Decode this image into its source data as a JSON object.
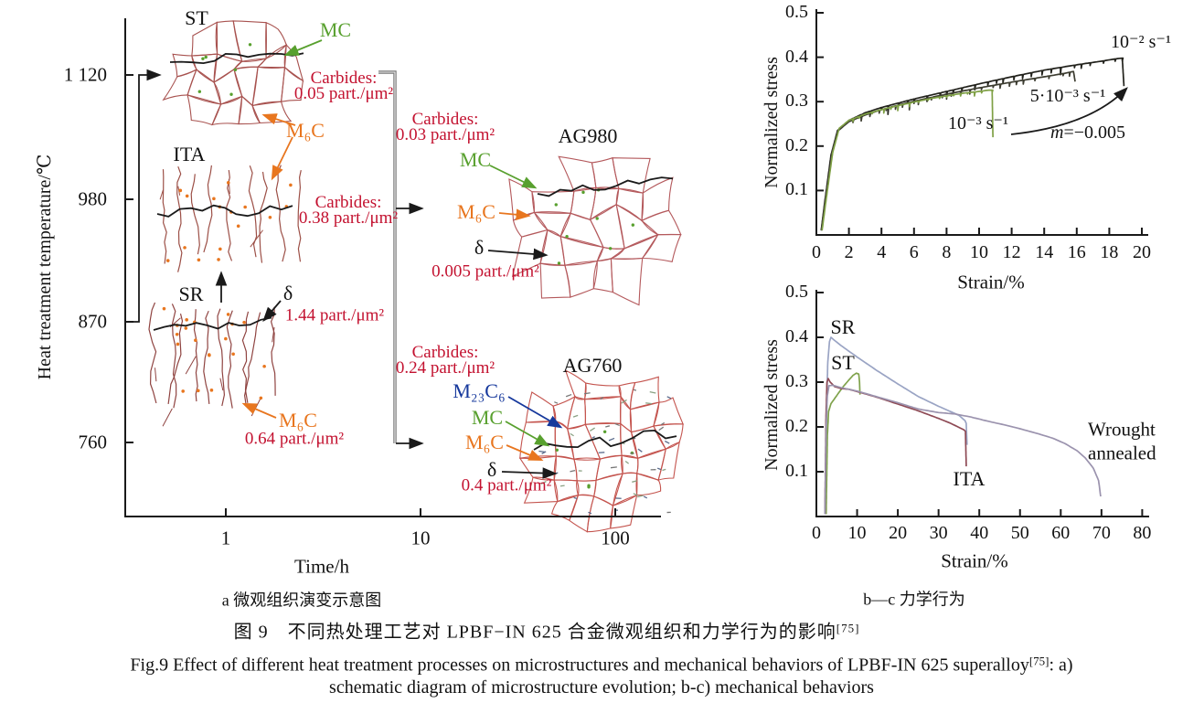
{
  "colors": {
    "annotation_red": "#c31230",
    "annotation_green": "#58a02e",
    "annotation_orange": "#e8761f",
    "annotation_blue": "#16389c",
    "bracket_gray": "#777777"
  },
  "panel_a": {
    "y_axis_label": "Heat treatment temperature/℃",
    "x_axis_label": "Time/h",
    "y_ticks": [
      "1 120",
      "980",
      "870",
      "760"
    ],
    "x_ticks": [
      "1",
      "10",
      "100"
    ],
    "caption": "a 微观组织演变示意图",
    "states": {
      "st": {
        "label": "ST",
        "mc": "MC",
        "m6c": "M₆C",
        "carbides_title": "Carbides:",
        "carbides_value": "0.05 part./μm²"
      },
      "ita": {
        "label": "ITA",
        "carbides_title": "Carbides:",
        "carbides_value": "0.38 part./μm²"
      },
      "sr": {
        "label": "SR",
        "delta": "δ",
        "delta_value": "1.44 part./μm²",
        "m6c": "M₆C",
        "m6c_value": "0.64 part./μm²"
      },
      "ag980": {
        "label": "AG980",
        "carbides_title": "Carbides:",
        "carbides_value": "0.03 part./μm²",
        "mc": "MC",
        "m6c": "M₆C",
        "delta": "δ",
        "delta_value": "0.005 part./μm²"
      },
      "ag760": {
        "label": "AG760",
        "carbides_title": "Carbides:",
        "carbides_value": "0.24 part./μm²",
        "m23c6": "M₂₃C₆",
        "mc": "MC",
        "m6c": "M₆C",
        "delta": "δ",
        "delta_value": "0.4 part./μm²"
      }
    }
  },
  "chart_b": {
    "ylabel": "Normalized stress",
    "xlabel": "Strain/%",
    "y_ticks": [
      "0.1",
      "0.2",
      "0.3",
      "0.4",
      "0.5"
    ],
    "x_ticks": [
      "0",
      "2",
      "4",
      "6",
      "8",
      "10",
      "12",
      "14",
      "16",
      "18",
      "20"
    ],
    "labels": {
      "rate_1e2": "10⁻² s⁻¹",
      "rate_5e3": "5·10⁻³ s⁻¹",
      "rate_1e3": "10⁻³ s⁻¹",
      "m_var": "m",
      "m_value": "=−0.005"
    }
  },
  "chart_c": {
    "ylabel": "Normalized stress",
    "xlabel": "Strain/%",
    "y_ticks": [
      "0.1",
      "0.2",
      "0.3",
      "0.4",
      "0.5"
    ],
    "x_ticks": [
      "0",
      "10",
      "20",
      "30",
      "40",
      "50",
      "60",
      "70",
      "80"
    ],
    "labels": {
      "sr": "SR",
      "st": "ST",
      "ita": "ITA",
      "wrought_line1": "Wrought",
      "wrought_line2": "annealed"
    },
    "caption": "b—c 力学行为"
  },
  "captions": {
    "zh_main": "图 9　不同热处理工艺对 LPBF−IN 625 合金微观组织和力学行为的影响",
    "ref_sup": "[75]",
    "en_line1": "Fig.9 Effect of different heat treatment processes on microstructures and mechanical behaviors of LPBF-IN 625 superalloy",
    "en_line1_tail": ": a)",
    "en_line2": "schematic diagram of microstructure evolution; b-c) mechanical behaviors"
  },
  "chart_data": [
    {
      "id": "b",
      "type": "line",
      "title": "",
      "xlabel": "Strain/%",
      "ylabel": "Normalized stress",
      "xlim": [
        0,
        20
      ],
      "ylim": [
        0,
        0.5
      ],
      "grid": false,
      "legend_position": "inline-annotations",
      "annotations": [
        "10⁻² s⁻¹",
        "5·10⁻³ s⁻¹",
        "10⁻³ s⁻¹",
        "m=−0.005"
      ],
      "series": [
        {
          "name": "10⁻² s⁻¹",
          "color": "#22221c",
          "serrated": true,
          "points": [
            [
              0.3,
              0.01
            ],
            [
              0.5,
              0.07
            ],
            [
              0.9,
              0.18
            ],
            [
              1.3,
              0.235
            ],
            [
              2,
              0.258
            ],
            [
              3,
              0.275
            ],
            [
              4,
              0.287
            ],
            [
              6,
              0.306
            ],
            [
              8,
              0.323
            ],
            [
              10,
              0.34
            ],
            [
              12,
              0.356
            ],
            [
              14,
              0.371
            ],
            [
              16,
              0.383
            ],
            [
              17.5,
              0.391
            ],
            [
              18.5,
              0.397
            ],
            [
              18.8,
              0.398
            ],
            [
              18.9,
              0.335
            ]
          ]
        },
        {
          "name": "5·10⁻³ s⁻¹",
          "color": "#3c3c30",
          "serrated": true,
          "points": [
            [
              0.3,
              0.01
            ],
            [
              0.55,
              0.08
            ],
            [
              0.95,
              0.185
            ],
            [
              1.35,
              0.235
            ],
            [
              2,
              0.255
            ],
            [
              3,
              0.27
            ],
            [
              4,
              0.282
            ],
            [
              5,
              0.292
            ],
            [
              6,
              0.301
            ],
            [
              8,
              0.317
            ],
            [
              10,
              0.331
            ],
            [
              12,
              0.344
            ],
            [
              14,
              0.356
            ],
            [
              15.3,
              0.364
            ],
            [
              15.8,
              0.368
            ],
            [
              15.9,
              0.345
            ]
          ]
        },
        {
          "name": "10⁻³ s⁻¹",
          "color": "#7fa045",
          "serrated": true,
          "points": [
            [
              0.35,
              0.01
            ],
            [
              0.6,
              0.08
            ],
            [
              1,
              0.185
            ],
            [
              1.4,
              0.24
            ],
            [
              2,
              0.258
            ],
            [
              3,
              0.272
            ],
            [
              4,
              0.282
            ],
            [
              5,
              0.291
            ],
            [
              6,
              0.299
            ],
            [
              7,
              0.307
            ],
            [
              8,
              0.313
            ],
            [
              9,
              0.319
            ],
            [
              10,
              0.323
            ],
            [
              10.6,
              0.326
            ],
            [
              10.8,
              0.326
            ],
            [
              10.85,
              0.22
            ]
          ]
        }
      ]
    },
    {
      "id": "c",
      "type": "line",
      "title": "",
      "xlabel": "Strain/%",
      "ylabel": "Normalized stress",
      "xlim": [
        0,
        80
      ],
      "ylim": [
        0,
        0.5
      ],
      "grid": false,
      "legend_position": "inline-annotations",
      "annotations": [
        "SR",
        "ST",
        "ITA",
        "Wrought annealed"
      ],
      "series": [
        {
          "name": "SR",
          "color": "#9aa4c4",
          "serrated": false,
          "points": [
            [
              2.2,
              0.005
            ],
            [
              2.5,
              0.24
            ],
            [
              2.8,
              0.345
            ],
            [
              3.2,
              0.39
            ],
            [
              3.6,
              0.4
            ],
            [
              4.2,
              0.395
            ],
            [
              6,
              0.382
            ],
            [
              10,
              0.356
            ],
            [
              15,
              0.325
            ],
            [
              20,
              0.296
            ],
            [
              25,
              0.268
            ],
            [
              30,
              0.246
            ],
            [
              33,
              0.234
            ],
            [
              35,
              0.226
            ],
            [
              36.5,
              0.214
            ],
            [
              36.8,
              0.208
            ],
            [
              37,
              0.16
            ]
          ]
        },
        {
          "name": "ST",
          "color": "#7fa24b",
          "serrated": false,
          "points": [
            [
              2.4,
              0.005
            ],
            [
              2.7,
              0.18
            ],
            [
              3,
              0.235
            ],
            [
              3.6,
              0.252
            ],
            [
              5,
              0.27
            ],
            [
              6.5,
              0.289
            ],
            [
              8,
              0.305
            ],
            [
              9,
              0.315
            ],
            [
              9.8,
              0.32
            ],
            [
              10.4,
              0.318
            ],
            [
              10.6,
              0.3
            ],
            [
              10.7,
              0.272
            ]
          ]
        },
        {
          "name": "ITA",
          "color": "#8e4a55",
          "serrated": false,
          "points": [
            [
              2.1,
              0.005
            ],
            [
              2.35,
              0.22
            ],
            [
              2.6,
              0.3
            ],
            [
              2.9,
              0.308
            ],
            [
              3.4,
              0.3
            ],
            [
              4.5,
              0.29
            ],
            [
              6,
              0.286
            ],
            [
              8,
              0.284
            ],
            [
              10,
              0.279
            ],
            [
              15,
              0.266
            ],
            [
              20,
              0.251
            ],
            [
              25,
              0.236
            ],
            [
              30,
              0.219
            ],
            [
              33,
              0.208
            ],
            [
              35,
              0.199
            ],
            [
              36.3,
              0.193
            ],
            [
              36.6,
              0.19
            ],
            [
              36.8,
              0.112
            ]
          ]
        },
        {
          "name": "Wrought annealed",
          "color": "#9b93ae",
          "serrated": false,
          "points": [
            [
              2.1,
              0.005
            ],
            [
              2.4,
              0.2
            ],
            [
              2.7,
              0.27
            ],
            [
              3.1,
              0.292
            ],
            [
              4,
              0.293
            ],
            [
              6,
              0.288
            ],
            [
              8,
              0.284
            ],
            [
              10,
              0.28
            ],
            [
              15,
              0.267
            ],
            [
              20,
              0.254
            ],
            [
              25,
              0.24
            ],
            [
              30,
              0.232
            ],
            [
              34,
              0.229
            ],
            [
              38,
              0.222
            ],
            [
              42,
              0.213
            ],
            [
              46,
              0.205
            ],
            [
              50,
              0.196
            ],
            [
              54,
              0.186
            ],
            [
              58,
              0.175
            ],
            [
              61,
              0.163
            ],
            [
              64,
              0.147
            ],
            [
              66,
              0.131
            ],
            [
              68,
              0.108
            ],
            [
              69.3,
              0.08
            ],
            [
              69.8,
              0.045
            ]
          ]
        }
      ]
    }
  ]
}
